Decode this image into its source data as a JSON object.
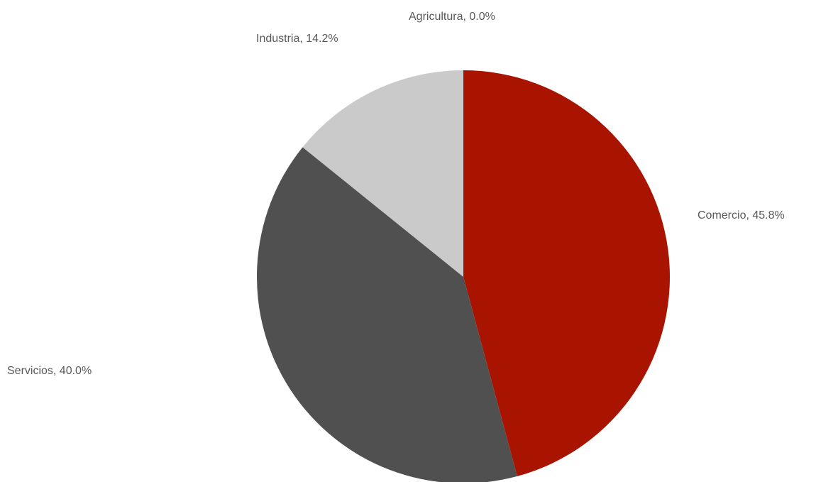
{
  "chart_data": {
    "type": "pie",
    "title": "",
    "slices": [
      {
        "label": "Comercio",
        "value": 45.8,
        "value_label": "45.8%",
        "color": "#A81400"
      },
      {
        "label": "Servicios",
        "value": 40.0,
        "value_label": "40.0%",
        "color": "#505050"
      },
      {
        "label": "Industria",
        "value": 14.2,
        "value_label": "14.2%",
        "color": "#CACACA"
      },
      {
        "label": "Agricultura",
        "value": 0.0,
        "value_label": "0.0%",
        "color": "#808080"
      }
    ],
    "start_angle": "12 o'clock",
    "direction": "clockwise",
    "legend": "none",
    "data_labels": "outside"
  }
}
